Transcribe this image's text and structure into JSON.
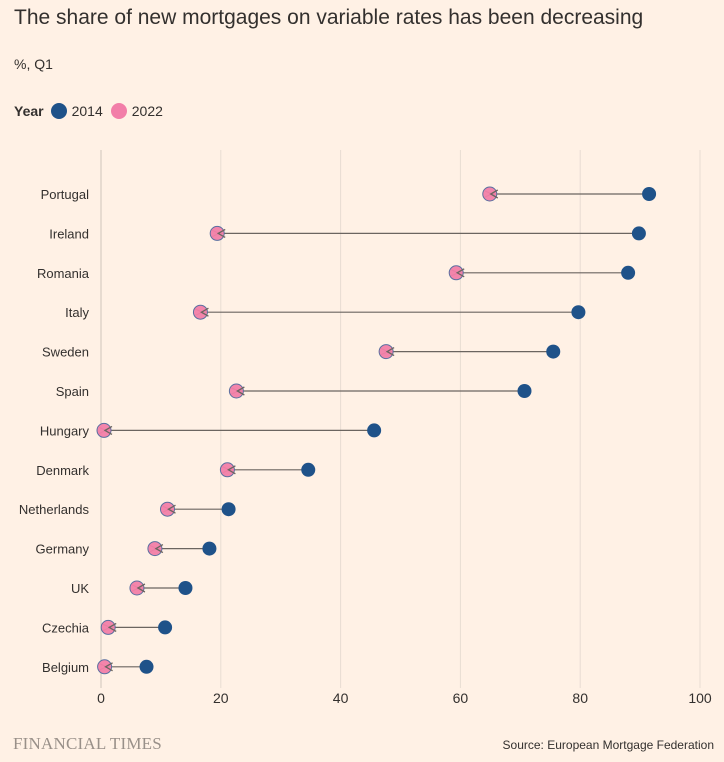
{
  "colors": {
    "background": "#FFF1E5",
    "grid": "#E8DDD2",
    "arrow": "#6B6560",
    "series_2014": "#1F5289",
    "series_2022": "#F27EA8",
    "series_2022_stroke": "#5A6FA0"
  },
  "chart_data": {
    "type": "dumbbell",
    "title": "The share of new mortgages on variable rates has been decreasing",
    "subtitle": "%, Q1",
    "legend_title": "Year",
    "xlim": [
      0,
      100
    ],
    "xticks": [
      0,
      20,
      40,
      60,
      80,
      100
    ],
    "categories": [
      "Portugal",
      "Ireland",
      "Romania",
      "Italy",
      "Sweden",
      "Spain",
      "Hungary",
      "Denmark",
      "Netherlands",
      "Germany",
      "UK",
      "Czechia",
      "Belgium"
    ],
    "series": [
      {
        "name": "2014",
        "values": [
          91.5,
          89.8,
          88,
          79.7,
          75.5,
          70.7,
          45.6,
          34.6,
          21.3,
          18.1,
          14.1,
          10.7,
          7.6
        ]
      },
      {
        "name": "2022",
        "values": [
          64.9,
          19.4,
          59.3,
          16.6,
          47.6,
          22.6,
          0.5,
          21.1,
          11.1,
          9.0,
          6.0,
          1.2,
          0.6
        ]
      }
    ]
  },
  "footer": {
    "brand": "FINANCIAL TIMES",
    "source": "Source: European Mortgage Federation"
  }
}
